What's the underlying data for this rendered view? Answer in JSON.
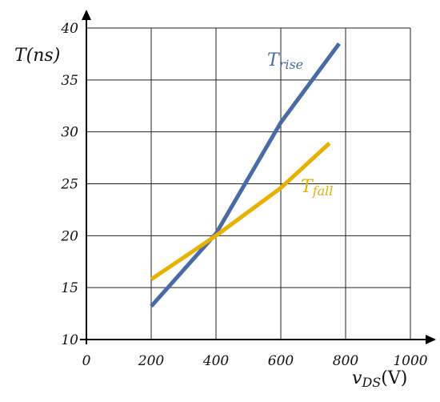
{
  "chart_data": {
    "type": "line",
    "xlabel": {
      "main": "v",
      "sub": "DS",
      "unit": "(V)"
    },
    "ylabel": "T(ns)",
    "xlim": [
      0,
      1000
    ],
    "ylim": [
      10,
      40
    ],
    "x_ticks": [
      0,
      200,
      400,
      600,
      800,
      1000
    ],
    "x_tick_labels": [
      "0",
      "200",
      "400",
      "600",
      "800",
      "1000"
    ],
    "y_ticks": [
      10,
      15,
      20,
      25,
      30,
      35,
      40
    ],
    "y_tick_labels": [
      "10",
      "15",
      "20",
      "25",
      "30",
      "35",
      "40"
    ],
    "grid": true,
    "series": [
      {
        "name": {
          "main": "T",
          "sub": "rise"
        },
        "color": "#4a6aa5",
        "x": [
          200,
          400,
          600,
          780
        ],
        "y": [
          13.2,
          20.2,
          30.9,
          38.5
        ]
      },
      {
        "name": {
          "main": "T",
          "sub": "fall"
        },
        "color": "#e8b000",
        "x": [
          200,
          400,
          600,
          750
        ],
        "y": [
          15.8,
          20.0,
          24.6,
          28.9
        ]
      }
    ]
  }
}
